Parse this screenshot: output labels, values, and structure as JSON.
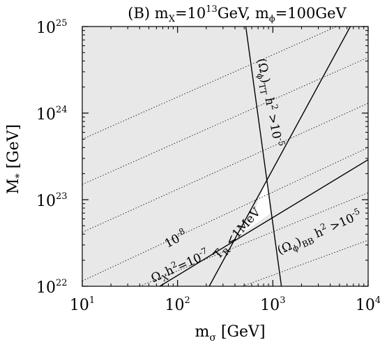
{
  "chart_data": {
    "type": "line",
    "title": {
      "prefix": "(B) m",
      "x_sub": "X",
      "eq1": "=10",
      "exp1": "13",
      "gev1": "GeV, m",
      "phi_sub": "ϕ",
      "eq2": "=100GeV"
    },
    "xlabel": {
      "base": "m",
      "sub": "σ",
      "unit": " [GeV]"
    },
    "ylabel": {
      "base": "M",
      "sub": "*",
      "unit": " [GeV]"
    },
    "x_scale": "log",
    "y_scale": "log",
    "xlim": [
      10,
      10000
    ],
    "ylim": [
      1e+22,
      1e+25
    ],
    "x_ticks": [
      {
        "value": 10,
        "base": "10",
        "exp": "1"
      },
      {
        "value": 100,
        "base": "10",
        "exp": "2"
      },
      {
        "value": 1000,
        "base": "10",
        "exp": "3"
      },
      {
        "value": 10000,
        "base": "10",
        "exp": "4"
      }
    ],
    "y_ticks": [
      {
        "value": 1e+22,
        "base": "10",
        "exp": "22"
      },
      {
        "value": 1e+23,
        "base": "10",
        "exp": "23"
      },
      {
        "value": 1e+24,
        "base": "10",
        "exp": "24"
      },
      {
        "value": 1e+25,
        "base": "10",
        "exp": "25"
      }
    ],
    "background_color": "#e8e8e8",
    "allowed_region_color": "#ffffff",
    "allowed_region": [
      [
        380,
        3.4e+22
      ],
      [
        610,
        6.5e+22
      ],
      [
        870,
        1.75e+23
      ],
      [
        930,
        6.9e+22
      ]
    ],
    "solid_lines": [
      {
        "id": "omega-x",
        "points": [
          [
            65,
            1e+22
          ],
          [
            10000,
            2.9e+23
          ]
        ]
      },
      {
        "id": "omega-bb",
        "points": [
          [
            215,
            1e+22
          ],
          [
            6500,
            1e+25
          ]
        ]
      },
      {
        "id": "omega-tt",
        "points": [
          [
            520,
            1e+25
          ],
          [
            1230,
            1e+22
          ]
        ]
      }
    ],
    "dotted_lines": [
      {
        "points": [
          [
            10,
            5e+23
          ],
          [
            10000,
            1.45e+25
          ]
        ]
      },
      {
        "points": [
          [
            10,
            1.5e+23
          ],
          [
            10000,
            4.4e+24
          ]
        ]
      },
      {
        "points": [
          [
            10,
            4.2e+22
          ],
          [
            10000,
            1.3e+24
          ]
        ]
      },
      {
        "points": [
          [
            10,
            1.15e+22
          ],
          [
            10000,
            4e+23
          ]
        ]
      },
      {
        "points": [
          [
            40,
            1e+22
          ],
          [
            10000,
            1.2e+23
          ]
        ]
      },
      {
        "points": [
          [
            480,
            1e+22
          ],
          [
            10000,
            3.4e+22
          ]
        ]
      }
    ],
    "annotations": [
      {
        "id": "label-dotted",
        "x": 100,
        "y": 3.2e+22,
        "angle": -28,
        "parts": [
          {
            "t": "10"
          },
          {
            "t": "-8",
            "sup": true
          }
        ]
      },
      {
        "id": "label-omega-x",
        "x": 110,
        "y": 1.55e+22,
        "angle": -24,
        "parts": [
          {
            "t": "Ω"
          },
          {
            "t": "X",
            "sub": true
          },
          {
            "t": "h"
          },
          {
            "t": "2",
            "sup": true
          },
          {
            "t": "=10"
          },
          {
            "t": "-7",
            "sup": true
          }
        ]
      },
      {
        "id": "label-reheat",
        "x": 450,
        "y": 3.8e+22,
        "angle": -48,
        "parts": [
          {
            "t": "T"
          },
          {
            "t": "R",
            "sub": true
          },
          {
            "t": " <1MeV"
          }
        ]
      },
      {
        "id": "label-omega-bb",
        "x": 3200,
        "y": 3.8e+22,
        "angle": -24,
        "parts": [
          {
            "t": "(Ω"
          },
          {
            "t": "ϕ",
            "sub": true
          },
          {
            "t": ")"
          },
          {
            "t": "BB",
            "sub": true
          },
          {
            "t": " h"
          },
          {
            "t": "2",
            "sup": true
          },
          {
            "t": " >10"
          },
          {
            "t": "-5",
            "sup": true
          }
        ]
      },
      {
        "id": "label-omega-tt",
        "x": 850,
        "y": 1.3e+24,
        "angle": 79,
        "parts": [
          {
            "t": "(Ω"
          },
          {
            "t": "ϕ",
            "sub": true
          },
          {
            "t": ")"
          },
          {
            "t": "TT",
            "sub": true
          },
          {
            "t": " h"
          },
          {
            "t": "2",
            "sup": true
          },
          {
            "t": " >10"
          },
          {
            "t": "-5",
            "sup": true
          }
        ]
      }
    ]
  }
}
